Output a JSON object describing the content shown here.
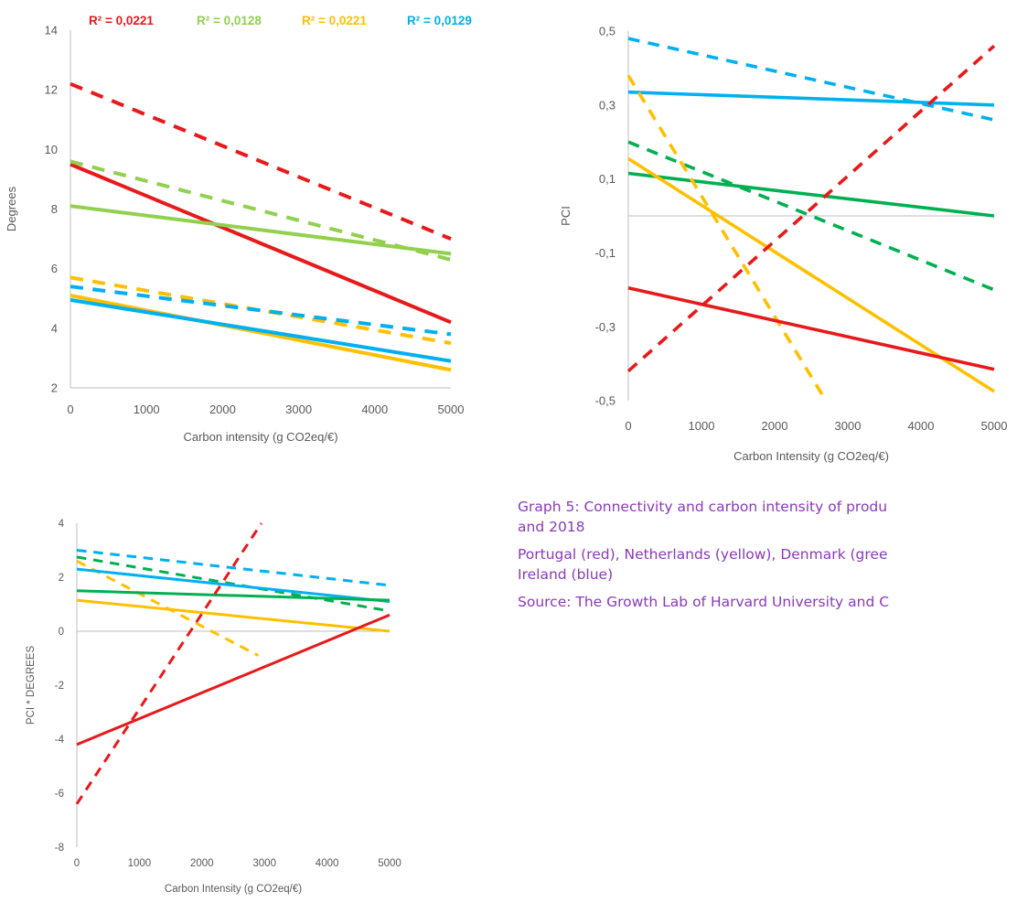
{
  "colors": {
    "red": "#e8191a",
    "yellow": "#ffc000",
    "green_light": "#92d050",
    "green": "#00b050",
    "blue": "#00b0f0",
    "axis": "#bfbfbf",
    "text": "#595959",
    "caption": "#8a3ab9"
  },
  "chart_data": [
    {
      "type": "line",
      "xlabel": "Carbon intensity (g CO2eq/€)",
      "ylabel": "Degrees",
      "xlim": [
        0,
        5000
      ],
      "ylim": [
        2,
        14
      ],
      "x_ticks": [
        "0",
        "1000",
        "2000",
        "3000",
        "4000",
        "5000"
      ],
      "y_ticks": [
        "2",
        "4",
        "6",
        "8",
        "10",
        "12",
        "14"
      ],
      "r2_labels": [
        {
          "text": "R² = 0,0221",
          "color": "#e8191a"
        },
        {
          "text": "R² = 0,0128",
          "color": "#92d050"
        },
        {
          "text": "R² = 0,0221",
          "color": "#ffc000"
        },
        {
          "text": "R² = 0,0129",
          "color": "#00b0f0"
        }
      ],
      "series": [
        {
          "color": "#e8191a",
          "dashed": true,
          "x": [
            0,
            5000
          ],
          "y": [
            12.2,
            7.0
          ]
        },
        {
          "color": "#e8191a",
          "dashed": false,
          "x": [
            0,
            5000
          ],
          "y": [
            9.5,
            4.2
          ]
        },
        {
          "color": "#92d050",
          "dashed": true,
          "x": [
            0,
            5000
          ],
          "y": [
            9.6,
            6.3
          ]
        },
        {
          "color": "#92d050",
          "dashed": false,
          "x": [
            0,
            5000
          ],
          "y": [
            8.1,
            6.5
          ]
        },
        {
          "color": "#ffc000",
          "dashed": true,
          "x": [
            0,
            5000
          ],
          "y": [
            5.7,
            3.5
          ]
        },
        {
          "color": "#00b0f0",
          "dashed": true,
          "x": [
            0,
            5000
          ],
          "y": [
            5.4,
            3.8
          ]
        },
        {
          "color": "#ffc000",
          "dashed": false,
          "x": [
            0,
            5000
          ],
          "y": [
            5.1,
            2.6
          ]
        },
        {
          "color": "#00b0f0",
          "dashed": false,
          "x": [
            0,
            5000
          ],
          "y": [
            4.95,
            2.9
          ]
        }
      ]
    },
    {
      "type": "line",
      "xlabel": "Carbon Intensity (g CO2eq/€)",
      "ylabel": "PCI",
      "xlim": [
        0,
        5000
      ],
      "ylim": [
        -0.5,
        0.5
      ],
      "x_ticks": [
        "0",
        "1000",
        "2000",
        "3000",
        "4000",
        "5000"
      ],
      "y_ticks": [
        "-0,5",
        "-0,3",
        "-0,1",
        "0,1",
        "0,3",
        "0,5"
      ],
      "series": [
        {
          "color": "#00b0f0",
          "dashed": true,
          "x": [
            0,
            5000
          ],
          "y": [
            0.48,
            0.26
          ]
        },
        {
          "color": "#00b0f0",
          "dashed": false,
          "x": [
            0,
            5000
          ],
          "y": [
            0.335,
            0.3
          ]
        },
        {
          "color": "#00b050",
          "dashed": true,
          "x": [
            0,
            5000
          ],
          "y": [
            0.2,
            -0.2
          ]
        },
        {
          "color": "#00b050",
          "dashed": false,
          "x": [
            0,
            5000
          ],
          "y": [
            0.115,
            0.0
          ]
        },
        {
          "color": "#ffc000",
          "dashed": true,
          "x": [
            0,
            2700
          ],
          "y": [
            0.38,
            -0.5
          ]
        },
        {
          "color": "#ffc000",
          "dashed": false,
          "x": [
            0,
            5000
          ],
          "y": [
            0.155,
            -0.475
          ]
        },
        {
          "color": "#e8191a",
          "dashed": true,
          "x": [
            0,
            5000
          ],
          "y": [
            -0.42,
            0.46
          ]
        },
        {
          "color": "#e8191a",
          "dashed": false,
          "x": [
            0,
            5000
          ],
          "y": [
            -0.195,
            -0.415
          ]
        }
      ]
    },
    {
      "type": "line",
      "xlabel": "Carbon Intensity (g CO2eq/€)",
      "ylabel": "PCI * DEGREES",
      "xlim": [
        0,
        5000
      ],
      "ylim": [
        -8,
        4
      ],
      "x_ticks": [
        "0",
        "1000",
        "2000",
        "3000",
        "4000",
        "5000"
      ],
      "y_ticks": [
        "-8",
        "-6",
        "-4",
        "-2",
        "0",
        "2",
        "4"
      ],
      "series": [
        {
          "color": "#00b0f0",
          "dashed": true,
          "x": [
            0,
            5000
          ],
          "y": [
            3.0,
            1.7
          ]
        },
        {
          "color": "#00b050",
          "dashed": true,
          "x": [
            0,
            5000
          ],
          "y": [
            2.75,
            0.75
          ]
        },
        {
          "color": "#ffc000",
          "dashed": true,
          "x": [
            0,
            2900
          ],
          "y": [
            2.6,
            -0.9
          ]
        },
        {
          "color": "#00b0f0",
          "dashed": false,
          "x": [
            0,
            5000
          ],
          "y": [
            2.3,
            1.1
          ]
        },
        {
          "color": "#00b050",
          "dashed": false,
          "x": [
            0,
            5000
          ],
          "y": [
            1.5,
            1.15
          ]
        },
        {
          "color": "#ffc000",
          "dashed": false,
          "x": [
            0,
            5000
          ],
          "y": [
            1.15,
            0.0
          ]
        },
        {
          "color": "#e8191a",
          "dashed": false,
          "x": [
            0,
            5000
          ],
          "y": [
            -4.2,
            0.6
          ]
        },
        {
          "color": "#e8191a",
          "dashed": true,
          "x": [
            0,
            2950
          ],
          "y": [
            -6.4,
            4.0
          ]
        }
      ]
    }
  ],
  "caption": {
    "title_line1": "Graph 5: Connectivity and carbon intensity of produ",
    "title_line2": "and 2018",
    "legend_line1": "Portugal (red), Netherlands (yellow), Denmark (gree",
    "legend_line2": "Ireland (blue)",
    "source": "Source: The Growth Lab of Harvard University and C"
  }
}
